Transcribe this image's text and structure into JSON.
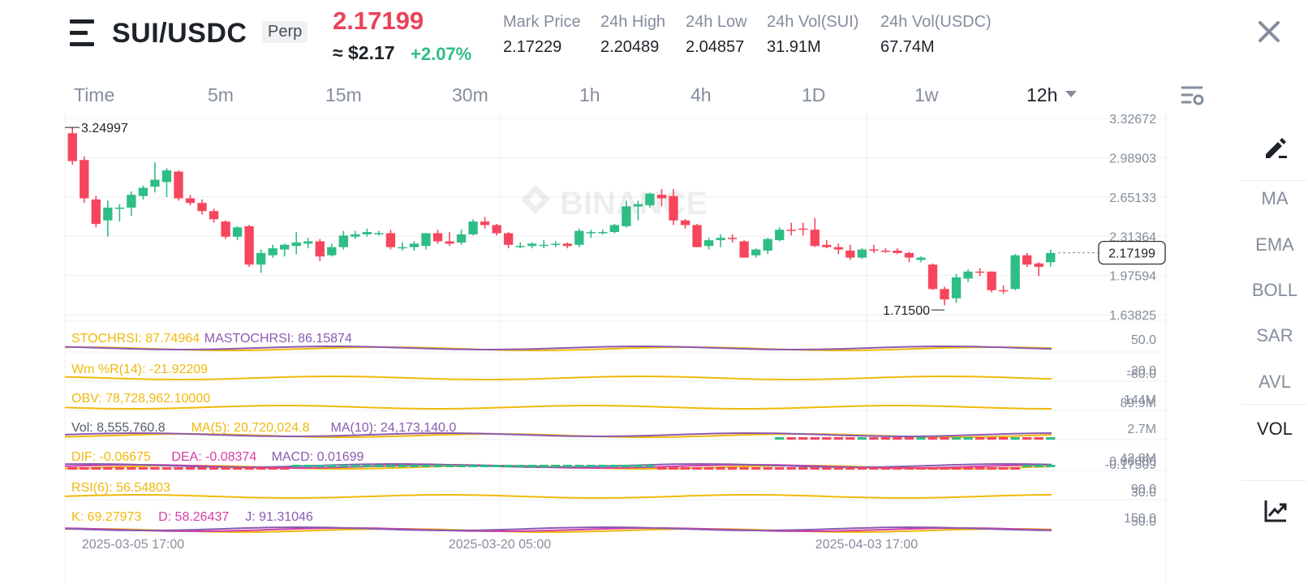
{
  "header": {
    "pair": "SUI/USDC",
    "contract_type": "Perp",
    "last_price": "2.17199",
    "usd_price": "≈ $2.17",
    "change": "+2.07%",
    "stats": [
      {
        "label": "Mark Price",
        "value": "2.17229"
      },
      {
        "label": "24h High",
        "value": "2.20489"
      },
      {
        "label": "24h Low",
        "value": "2.04857"
      },
      {
        "label": "24h Vol(SUI)",
        "value": "31.91M"
      },
      {
        "label": "24h Vol(USDC)",
        "value": "67.74M"
      }
    ],
    "icons": {
      "menu": "menu-icon",
      "close": "close-icon"
    }
  },
  "tabs": [
    "Time",
    "5m",
    "15m",
    "30m",
    "1h",
    "4h",
    "1D",
    "1w",
    "12h"
  ],
  "active_tab": "12h",
  "side_toolbar": {
    "items": [
      "MA",
      "EMA",
      "BOLL",
      "SAR",
      "AVL",
      "VOL"
    ],
    "active": "VOL",
    "icons": [
      "pencil-icon",
      "analysis-icon"
    ]
  },
  "colors": {
    "up": "#2ebd85",
    "down": "#f6465d",
    "accent_red": "#e94359",
    "grid": "#eeeff1",
    "yellow": "#f0b90b",
    "purple": "#8a5bb0",
    "magenta": "#d63da8"
  },
  "watermark": "BINANCE",
  "chart_data": {
    "type": "candlestick",
    "price_axis_ticks": [
      "3.32672",
      "2.98903",
      "2.65133",
      "2.31364",
      "1.97594",
      "1.63825"
    ],
    "current_price_label": "2.17199",
    "high_marker": "3.24997",
    "low_marker": "1.71500",
    "time_labels": [
      "2025-03-05 17:00",
      "2025-03-20 05:00",
      "2025-04-03 17:00"
    ],
    "ohlc": [
      [
        3.2,
        3.25,
        2.93,
        2.96
      ],
      [
        2.97,
        3.0,
        2.6,
        2.64
      ],
      [
        2.63,
        2.66,
        2.39,
        2.42
      ],
      [
        2.45,
        2.62,
        2.31,
        2.56
      ],
      [
        2.55,
        2.59,
        2.44,
        2.56
      ],
      [
        2.56,
        2.7,
        2.49,
        2.67
      ],
      [
        2.66,
        2.75,
        2.63,
        2.73
      ],
      [
        2.74,
        2.95,
        2.69,
        2.8
      ],
      [
        2.78,
        2.9,
        2.65,
        2.88
      ],
      [
        2.87,
        2.88,
        2.62,
        2.64
      ],
      [
        2.64,
        2.67,
        2.58,
        2.6
      ],
      [
        2.6,
        2.63,
        2.5,
        2.53
      ],
      [
        2.53,
        2.55,
        2.43,
        2.46
      ],
      [
        2.44,
        2.45,
        2.29,
        2.31
      ],
      [
        2.31,
        2.4,
        2.28,
        2.39
      ],
      [
        2.4,
        2.41,
        2.05,
        2.07
      ],
      [
        2.07,
        2.2,
        2.0,
        2.17
      ],
      [
        2.15,
        2.24,
        2.13,
        2.21
      ],
      [
        2.2,
        2.25,
        2.14,
        2.24
      ],
      [
        2.23,
        2.35,
        2.16,
        2.26
      ],
      [
        2.25,
        2.3,
        2.21,
        2.27
      ],
      [
        2.27,
        2.29,
        2.1,
        2.14
      ],
      [
        2.15,
        2.25,
        2.14,
        2.22
      ],
      [
        2.22,
        2.36,
        2.2,
        2.32
      ],
      [
        2.31,
        2.36,
        2.29,
        2.33
      ],
      [
        2.33,
        2.38,
        2.31,
        2.35
      ],
      [
        2.34,
        2.36,
        2.32,
        2.34
      ],
      [
        2.34,
        2.37,
        2.2,
        2.22
      ],
      [
        2.22,
        2.26,
        2.19,
        2.22
      ],
      [
        2.22,
        2.27,
        2.19,
        2.25
      ],
      [
        2.23,
        2.34,
        2.2,
        2.34
      ],
      [
        2.34,
        2.37,
        2.25,
        2.27
      ],
      [
        2.27,
        2.35,
        2.23,
        2.25
      ],
      [
        2.26,
        2.37,
        2.24,
        2.33
      ],
      [
        2.33,
        2.46,
        2.32,
        2.44
      ],
      [
        2.44,
        2.48,
        2.38,
        2.41
      ],
      [
        2.41,
        2.42,
        2.32,
        2.34
      ],
      [
        2.34,
        2.35,
        2.21,
        2.24
      ],
      [
        2.23,
        2.26,
        2.21,
        2.23
      ],
      [
        2.23,
        2.26,
        2.21,
        2.25
      ],
      [
        2.24,
        2.28,
        2.21,
        2.24
      ],
      [
        2.24,
        2.27,
        2.22,
        2.25
      ],
      [
        2.25,
        2.26,
        2.21,
        2.23
      ],
      [
        2.24,
        2.38,
        2.22,
        2.36
      ],
      [
        2.35,
        2.37,
        2.3,
        2.35
      ],
      [
        2.35,
        2.37,
        2.33,
        2.35
      ],
      [
        2.35,
        2.42,
        2.34,
        2.41
      ],
      [
        2.4,
        2.62,
        2.39,
        2.57
      ],
      [
        2.57,
        2.62,
        2.45,
        2.59
      ],
      [
        2.58,
        2.69,
        2.56,
        2.68
      ],
      [
        2.67,
        2.72,
        2.57,
        2.64
      ],
      [
        2.66,
        2.72,
        2.41,
        2.45
      ],
      [
        2.45,
        2.46,
        2.38,
        2.41
      ],
      [
        2.41,
        2.42,
        2.22,
        2.22
      ],
      [
        2.23,
        2.3,
        2.2,
        2.28
      ],
      [
        2.28,
        2.33,
        2.22,
        2.3
      ],
      [
        2.3,
        2.33,
        2.26,
        2.29
      ],
      [
        2.27,
        2.28,
        2.13,
        2.13
      ],
      [
        2.15,
        2.21,
        2.13,
        2.2
      ],
      [
        2.19,
        2.3,
        2.16,
        2.29
      ],
      [
        2.28,
        2.39,
        2.27,
        2.37
      ],
      [
        2.37,
        2.43,
        2.32,
        2.36
      ],
      [
        2.38,
        2.43,
        2.32,
        2.37
      ],
      [
        2.37,
        2.47,
        2.22,
        2.23
      ],
      [
        2.24,
        2.28,
        2.21,
        2.22
      ],
      [
        2.22,
        2.25,
        2.16,
        2.2
      ],
      [
        2.19,
        2.24,
        2.11,
        2.13
      ],
      [
        2.13,
        2.21,
        2.12,
        2.2
      ],
      [
        2.2,
        2.24,
        2.17,
        2.19
      ],
      [
        2.19,
        2.21,
        2.17,
        2.18
      ],
      [
        2.19,
        2.21,
        2.16,
        2.17
      ],
      [
        2.17,
        2.18,
        2.09,
        2.13
      ],
      [
        2.11,
        2.14,
        2.09,
        2.13
      ],
      [
        2.07,
        2.08,
        1.85,
        1.86
      ],
      [
        1.86,
        1.88,
        1.72,
        1.77
      ],
      [
        1.78,
        1.99,
        1.74,
        1.96
      ],
      [
        1.95,
        2.03,
        1.92,
        2.01
      ],
      [
        2.01,
        2.04,
        1.97,
        2.0
      ],
      [
        2.01,
        2.01,
        1.83,
        1.85
      ],
      [
        1.85,
        1.89,
        1.82,
        1.84
      ],
      [
        1.86,
        2.16,
        1.85,
        2.15
      ],
      [
        2.15,
        2.17,
        2.05,
        2.07
      ],
      [
        2.08,
        2.09,
        1.97,
        2.05
      ],
      [
        2.09,
        2.2,
        2.05,
        2.17
      ]
    ],
    "indicators": [
      {
        "name": "STOCHRSI",
        "lines": [
          {
            "label": "STOCHRSI: 87.74964",
            "color": "#f0b90b"
          },
          {
            "label": "MASTOCHRSI: 86.15874",
            "color": "#8a5bb0"
          }
        ],
        "axis": [
          "50.0"
        ]
      },
      {
        "name": "WMR",
        "lines": [
          {
            "label": "Wm %R(14): -21.92209",
            "color": "#f0b90b"
          }
        ],
        "axis": [
          "-20.0",
          "-80.0"
        ]
      },
      {
        "name": "OBV",
        "lines": [
          {
            "label": "OBV: 78,728,962.10000",
            "color": "#f0b90b"
          }
        ],
        "axis": [
          "144M",
          "89.9M"
        ]
      },
      {
        "name": "VOL",
        "lines": [
          {
            "label": "Vol: 8,555,760.8",
            "color": "#555d6a"
          },
          {
            "label": "MA(5): 20,720,024.8",
            "color": "#f0b90b"
          },
          {
            "label": "MA(10): 24,173,140.0",
            "color": "#8a5bb0"
          }
        ],
        "axis": [
          "2.7M"
        ]
      },
      {
        "name": "MACD",
        "lines": [
          {
            "label": "DIF: -0.06675",
            "color": "#f0b90b"
          },
          {
            "label": "DEA: -0.08374",
            "color": "#d63da8"
          },
          {
            "label": "MACD: 0.01699",
            "color": "#8a5bb0"
          }
        ],
        "axis": [
          "42.8M",
          "0.00000",
          "-0.17509"
        ]
      },
      {
        "name": "RSI",
        "lines": [
          {
            "label": "RSI(6): 56.54803",
            "color": "#f0b90b"
          }
        ],
        "axis": [
          "90.0",
          "30.0"
        ]
      },
      {
        "name": "KDJ",
        "lines": [
          {
            "label": "K: 69.27973",
            "color": "#f0b90b"
          },
          {
            "label": "D: 58.26437",
            "color": "#d63da8"
          },
          {
            "label": "J: 91.31046",
            "color": "#8a5bb0"
          }
        ],
        "axis": [
          "150.0",
          "50.0"
        ]
      }
    ]
  }
}
